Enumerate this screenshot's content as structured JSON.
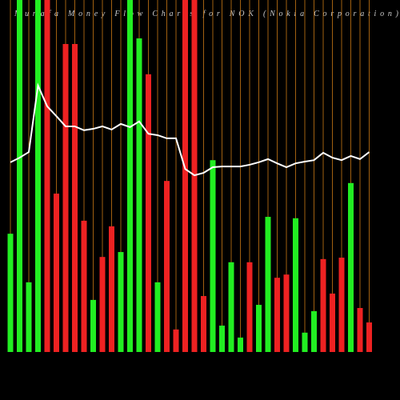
{
  "chart_data": {
    "type": "bar",
    "title": "Munafa Money Flow Charts for NOK (Nokia Corporation)",
    "categories": [
      null,
      null,
      null,
      null,
      null,
      null,
      null,
      null,
      null,
      null,
      null,
      null,
      null,
      null,
      null,
      null,
      null,
      null,
      null,
      null,
      null,
      null,
      null,
      null,
      null,
      null,
      null,
      null,
      null,
      null,
      null,
      null,
      null,
      null,
      null,
      null,
      null,
      null,
      null,
      null
    ],
    "ylim": [
      0,
      100
    ],
    "series": [
      {
        "type": "bar",
        "colors": [
          "#22ee22",
          "#22ee22",
          "#22ee22",
          "#22ee22",
          "#ee2222",
          "#ee2222",
          "#ee2222",
          "#ee2222",
          "#ee2222",
          "#22ee22",
          "#ee2222",
          "#ee2222",
          "#22ee22",
          "#22ee22",
          "#22ee22",
          "#ee2222",
          "#22ee22",
          "#ee2222",
          "#ee2222",
          "#ee2222",
          "#ee2222",
          "#ee2222",
          "#22ee22",
          "#22ee22",
          "#22ee22",
          "#22ee22",
          "#ee2222",
          "#22ee22",
          "#22ee22",
          "#ee2222",
          "#ee2222",
          "#22ee22",
          "#22ee22",
          "#22ee22",
          "#ee2222",
          "#ee2222",
          "#ee2222",
          "#22ee22",
          "#ee2222",
          "#ee2222"
        ],
        "values": [
          33.6,
          100,
          19.8,
          100,
          100,
          45,
          87.5,
          87.5,
          37.3,
          14.8,
          27,
          35.7,
          28.4,
          100,
          89.1,
          78.9,
          19.8,
          48.6,
          6.4,
          100,
          100,
          15.9,
          54.5,
          7.5,
          25.5,
          4.1,
          25.5,
          13.4,
          38.4,
          21.1,
          22,
          38,
          5.5,
          11.6,
          26.4,
          16.6,
          26.8,
          48,
          12.5,
          8.4
        ]
      },
      {
        "type": "line",
        "color": "#ffffff",
        "values": [
          53.9,
          55.2,
          56.8,
          75.7,
          69.8,
          67,
          64.1,
          64.1,
          63,
          63.4,
          64.1,
          63.2,
          64.8,
          63.9,
          65.5,
          62,
          61.6,
          60.7,
          60.7,
          52,
          50.2,
          50.9,
          52.5,
          52.7,
          52.7,
          52.7,
          53.2,
          53.9,
          54.8,
          53.6,
          52.5,
          53.6,
          54.1,
          54.5,
          56.6,
          55.2,
          54.5,
          55.7,
          54.8,
          56.8
        ]
      }
    ],
    "separator_color": "#c87814"
  }
}
